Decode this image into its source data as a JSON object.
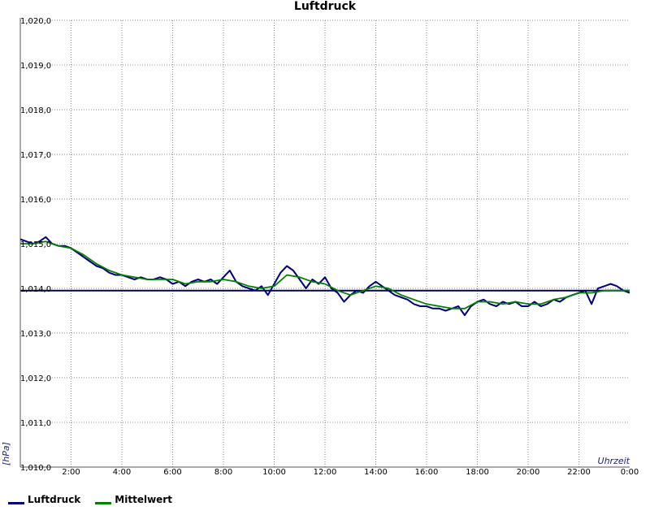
{
  "chart_data": {
    "type": "line",
    "title": "Luftdruck",
    "ylabel": "[hPa]",
    "xlabel": "Uhrzeit",
    "ylim": [
      1010.0,
      1020.0
    ],
    "xlim": [
      0,
      24
    ],
    "y_ticks": [
      "1,010,0",
      "1,011,0",
      "1,012,0",
      "1,013,0",
      "1,014,0",
      "1,015,0",
      "1,016,0",
      "1,017,0",
      "1,018,0",
      "1,019,0",
      "1,020,0"
    ],
    "x_ticks": [
      "2:00",
      "4:00",
      "6:00",
      "8:00",
      "10:00",
      "12:00",
      "14:00",
      "16:00",
      "18:00",
      "20:00",
      "22:00",
      "0:00"
    ],
    "grid": true,
    "legend_placement": "bottom-left",
    "reference_line": 1013.95,
    "series": [
      {
        "name": "Luftdruck",
        "color": "#000080",
        "x": [
          0,
          0.25,
          0.5,
          0.75,
          1.0,
          1.25,
          1.5,
          1.75,
          2.0,
          2.25,
          2.5,
          2.75,
          3.0,
          3.25,
          3.5,
          3.75,
          4.0,
          4.25,
          4.5,
          4.75,
          5.0,
          5.25,
          5.5,
          5.75,
          6.0,
          6.25,
          6.5,
          6.75,
          7.0,
          7.25,
          7.5,
          7.75,
          8.0,
          8.25,
          8.5,
          8.75,
          9.0,
          9.25,
          9.5,
          9.75,
          10.0,
          10.25,
          10.5,
          10.75,
          11.0,
          11.25,
          11.5,
          11.75,
          12.0,
          12.25,
          12.5,
          12.75,
          13.0,
          13.25,
          13.5,
          13.75,
          14.0,
          14.25,
          14.5,
          14.75,
          15.0,
          15.25,
          15.5,
          15.75,
          16.0,
          16.25,
          16.5,
          16.75,
          17.0,
          17.25,
          17.5,
          17.75,
          18.0,
          18.25,
          18.5,
          18.75,
          19.0,
          19.25,
          19.5,
          19.75,
          20.0,
          20.25,
          20.5,
          20.75,
          21.0,
          21.25,
          21.5,
          21.75,
          22.0,
          22.25,
          22.5,
          22.75,
          23.0,
          23.25,
          23.5,
          23.75,
          24.0
        ],
        "values": [
          1015.1,
          1015.05,
          1015.0,
          1015.05,
          1015.15,
          1015.0,
          1014.95,
          1014.95,
          1014.9,
          1014.8,
          1014.7,
          1014.6,
          1014.5,
          1014.45,
          1014.35,
          1014.3,
          1014.3,
          1014.25,
          1014.2,
          1014.25,
          1014.2,
          1014.2,
          1014.25,
          1014.2,
          1014.1,
          1014.15,
          1014.05,
          1014.15,
          1014.2,
          1014.15,
          1014.2,
          1014.1,
          1014.25,
          1014.4,
          1014.15,
          1014.05,
          1014.0,
          1013.95,
          1014.05,
          1013.85,
          1014.1,
          1014.35,
          1014.5,
          1014.4,
          1014.2,
          1014.0,
          1014.2,
          1014.1,
          1014.25,
          1014.0,
          1013.9,
          1013.7,
          1013.85,
          1013.95,
          1013.9,
          1014.05,
          1014.15,
          1014.05,
          1013.95,
          1013.85,
          1013.8,
          1013.75,
          1013.65,
          1013.6,
          1013.6,
          1013.55,
          1013.55,
          1013.5,
          1013.55,
          1013.6,
          1013.4,
          1013.6,
          1013.7,
          1013.75,
          1013.65,
          1013.6,
          1013.7,
          1013.65,
          1013.7,
          1013.6,
          1013.6,
          1013.7,
          1013.6,
          1013.65,
          1013.75,
          1013.7,
          1013.8,
          1013.85,
          1013.9,
          1013.95,
          1013.65,
          1014.0,
          1014.05,
          1014.1,
          1014.05,
          1013.95,
          1013.9
        ]
      },
      {
        "name": "Mittelwert",
        "color": "#008000",
        "x": [
          0,
          0.5,
          1.0,
          1.5,
          2.0,
          2.5,
          3.0,
          3.5,
          4.0,
          4.5,
          5.0,
          5.5,
          6.0,
          6.5,
          7.0,
          7.5,
          8.0,
          8.5,
          9.0,
          9.5,
          10.0,
          10.5,
          11.0,
          11.5,
          12.0,
          12.5,
          13.0,
          13.5,
          14.0,
          14.5,
          15.0,
          15.5,
          16.0,
          16.5,
          17.0,
          17.5,
          18.0,
          18.5,
          19.0,
          19.5,
          20.0,
          20.5,
          21.0,
          21.5,
          22.0,
          22.5,
          23.0,
          23.5,
          24.0
        ],
        "values": [
          1015.0,
          1015.0,
          1015.05,
          1014.95,
          1014.9,
          1014.75,
          1014.55,
          1014.4,
          1014.3,
          1014.25,
          1014.2,
          1014.2,
          1014.2,
          1014.1,
          1014.15,
          1014.15,
          1014.2,
          1014.15,
          1014.05,
          1014.0,
          1014.05,
          1014.3,
          1014.25,
          1014.15,
          1014.1,
          1013.95,
          1013.85,
          1013.95,
          1014.05,
          1014.0,
          1013.85,
          1013.75,
          1013.65,
          1013.6,
          1013.55,
          1013.55,
          1013.7,
          1013.7,
          1013.65,
          1013.7,
          1013.65,
          1013.65,
          1013.75,
          1013.8,
          1013.9,
          1013.9,
          1013.95,
          1013.95,
          1013.95
        ]
      }
    ]
  }
}
